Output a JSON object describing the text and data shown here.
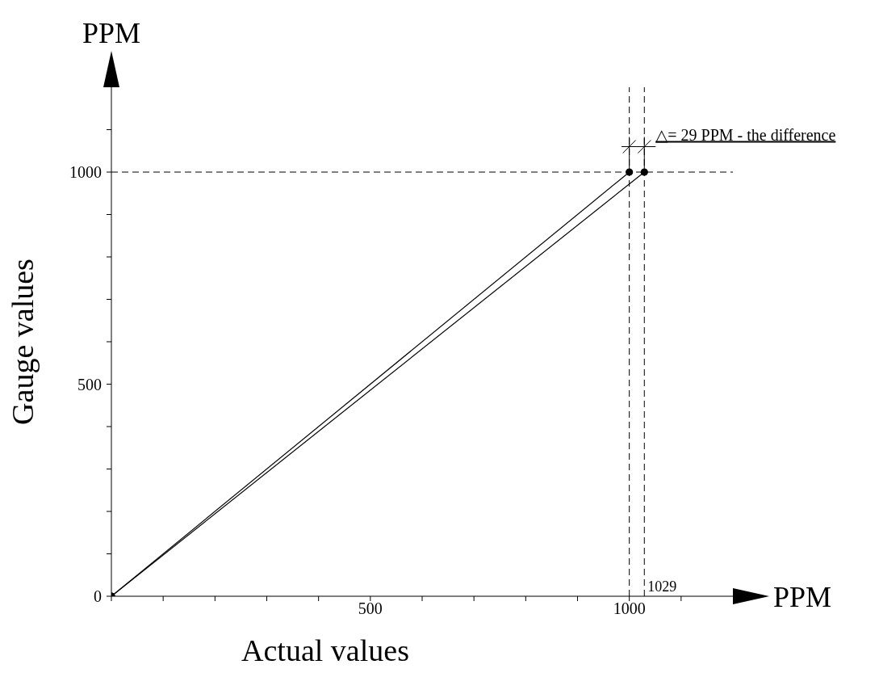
{
  "chart_data": {
    "type": "line",
    "xlabel": "Actual values",
    "ylabel": "Gauge values",
    "xlim": [
      0,
      1200
    ],
    "ylim": [
      0,
      1200
    ],
    "xticks": [
      {
        "value": 0,
        "label": null
      },
      {
        "value": 100,
        "label": null
      },
      {
        "value": 200,
        "label": null
      },
      {
        "value": 300,
        "label": null
      },
      {
        "value": 400,
        "label": null
      },
      500,
      {
        "value": 600,
        "label": null
      },
      {
        "value": 700,
        "label": null
      },
      {
        "value": 800,
        "label": null
      },
      {
        "value": 900,
        "label": null
      },
      1000,
      {
        "value": 1100,
        "label": null
      }
    ],
    "yticks": [
      0,
      {
        "value": 100,
        "label": null
      },
      {
        "value": 200,
        "label": null
      },
      {
        "value": 300,
        "label": null
      },
      {
        "value": 400,
        "label": null
      },
      500,
      {
        "value": 600,
        "label": null
      },
      {
        "value": 700,
        "label": null
      },
      {
        "value": 800,
        "label": null
      },
      {
        "value": 900,
        "label": null
      },
      1000,
      {
        "value": 1100,
        "label": null
      }
    ],
    "series": [
      {
        "color": "#000000",
        "x": [
          0,
          1000
        ],
        "values": [
          0,
          1000
        ]
      },
      {
        "color": "#000000",
        "x": [
          0,
          1029
        ],
        "values": [
          0,
          1000
        ]
      }
    ],
    "marker": "circle",
    "line_style": "solid",
    "grid": false,
    "ref_lines": [
      {
        "axis": "y",
        "value": 1000,
        "line_style": "dashed"
      },
      {
        "axis": "x",
        "value": 1000,
        "line_style": "dashed"
      },
      {
        "axis": "x",
        "value": 1029,
        "label": "1029",
        "line_style": "dashed"
      }
    ],
    "annotations": [
      "PPM",
      "PPM",
      {
        "text": "△= 29 PPM - the difference",
        "x": 1029,
        "y": 1060
      }
    ]
  }
}
